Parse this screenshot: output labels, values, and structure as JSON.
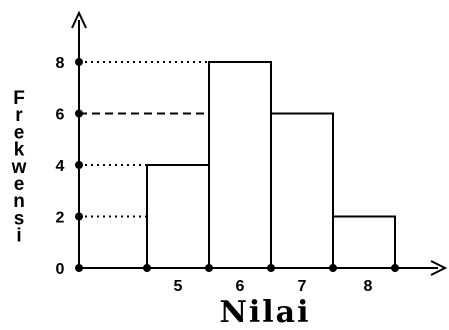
{
  "chart_data": {
    "type": "bar",
    "title": "",
    "xlabel": "Nilai",
    "ylabel": "Frekwensi",
    "categories": [
      "5",
      "6",
      "7",
      "8"
    ],
    "values": [
      4,
      8,
      6,
      2
    ],
    "y_ticks": [
      "0",
      "2",
      "4",
      "6",
      "8"
    ],
    "ylim": [
      0,
      10
    ],
    "grid": false,
    "guide_lines": [
      {
        "value": 8,
        "style": "dotted"
      },
      {
        "value": 6,
        "style": "dashed"
      },
      {
        "value": 4,
        "style": "dotted"
      },
      {
        "value": 2,
        "style": "dotted"
      }
    ],
    "colors": {
      "bar_fill": "#ffffff",
      "stroke": "#000000"
    }
  }
}
